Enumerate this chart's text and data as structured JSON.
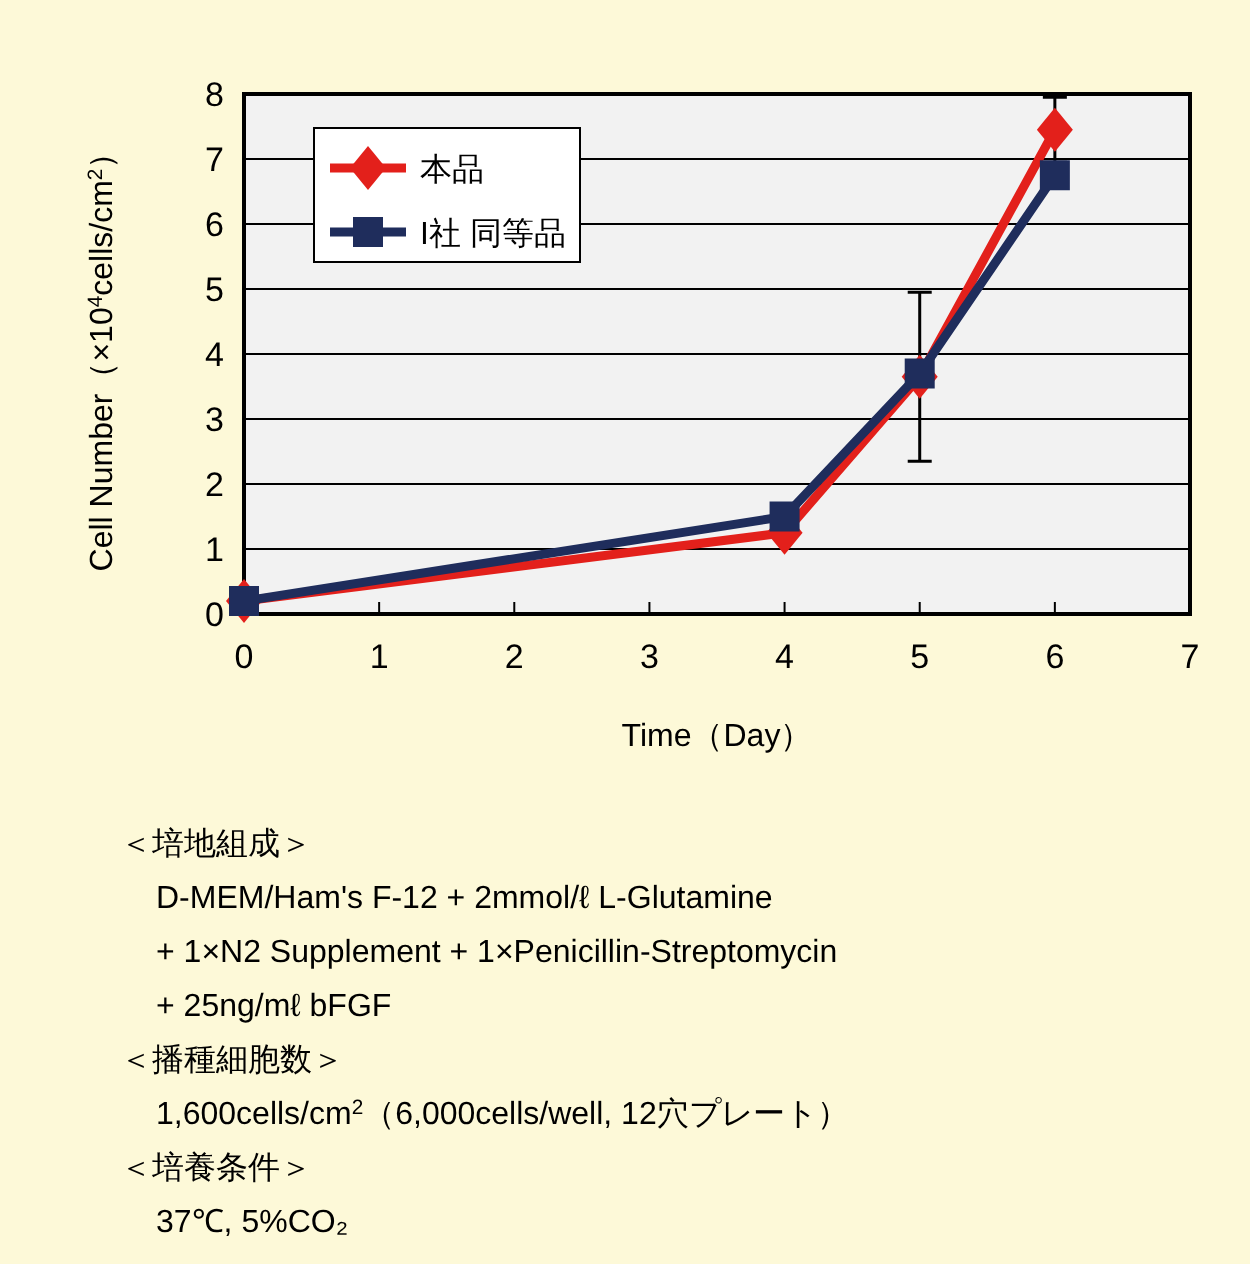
{
  "chart_data": {
    "type": "line",
    "xlabel": "Time（Day）",
    "ylabel": "Cell Number（×10$^{4}$cells/cm$^{2}$）",
    "x": [
      0,
      4,
      5,
      6
    ],
    "series": [
      {
        "name": "本品",
        "color": "#e3201b",
        "marker": "diamond",
        "values": [
          0.2,
          1.25,
          3.65,
          7.45
        ],
        "errors": [
          null,
          null,
          1.3,
          0.5
        ]
      },
      {
        "name": "I社 同等品",
        "color": "#1f2d5c",
        "marker": "square",
        "values": [
          0.2,
          1.5,
          3.7,
          6.75
        ]
      }
    ],
    "xlim": [
      0,
      7
    ],
    "ylim": [
      0,
      8
    ],
    "xticks": [
      0,
      1,
      2,
      3,
      4,
      5,
      6,
      7
    ],
    "yticks": [
      0,
      1,
      2,
      3,
      4,
      5,
      6,
      7,
      8
    ],
    "grid": "y",
    "legend": "top left",
    "line_style": "solid",
    "annotations": [
      "＜培地組成＞",
      "D-MEM/Ham's F-12 + 2mmol/ℓ L-Glutamine",
      "+ 1×N2 Supplement + 1×Penicillin-Streptomycin",
      "+ 25ng/mℓ bFGF",
      "＜播種細胞数＞",
      "1,600cells/cm$^{2}$（6,000cells/well, 12穴プレート）",
      "＜培養条件＞",
      "37℃, 5%CO₂"
    ]
  }
}
